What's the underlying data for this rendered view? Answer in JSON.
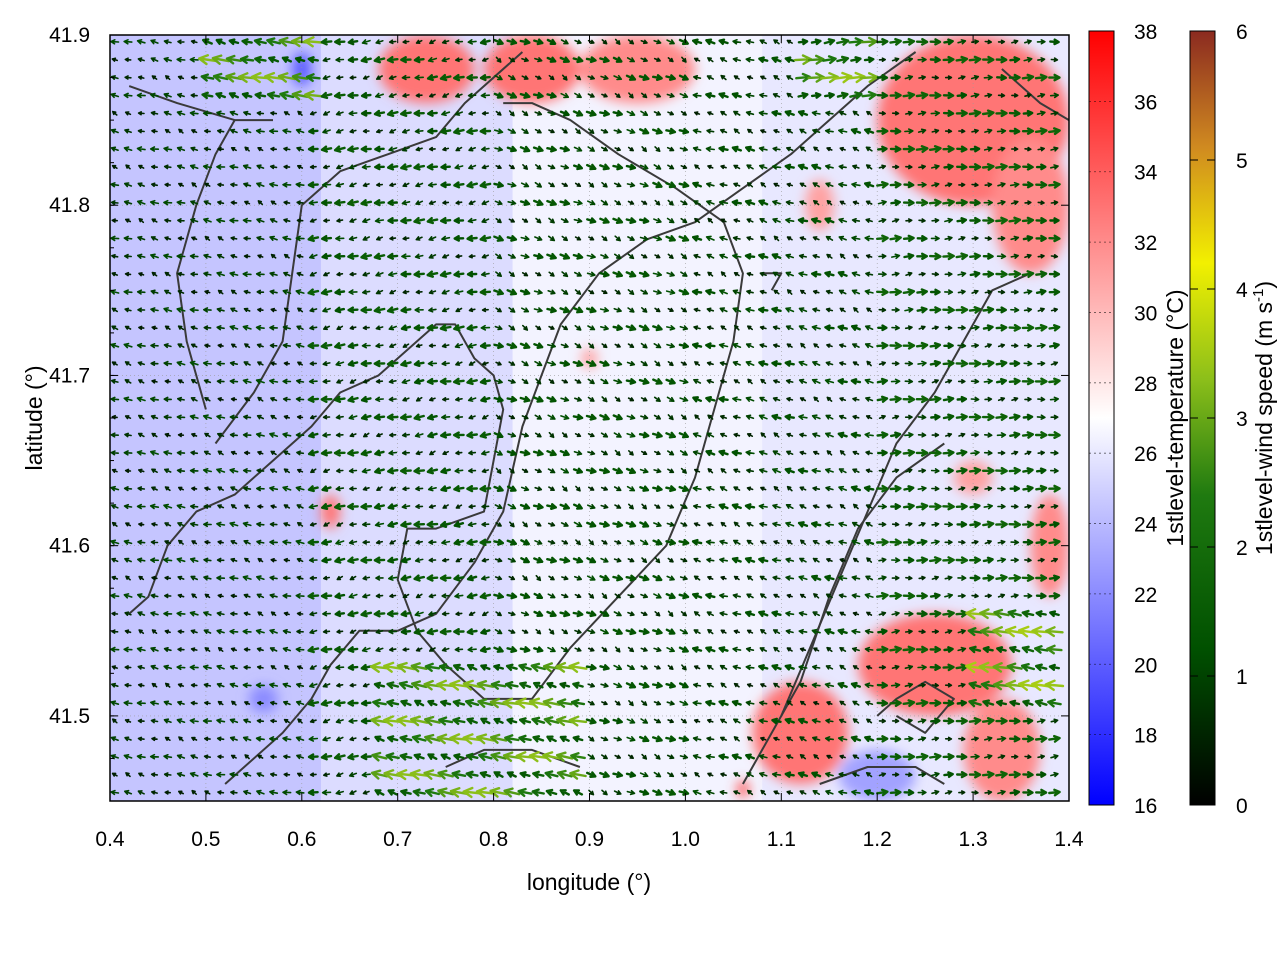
{
  "chart_data": {
    "type": "heatmap",
    "title": "",
    "xlabel": "longitude (°)",
    "ylabel": "latitude (°)",
    "xlim": [
      0.4,
      1.4
    ],
    "ylim": [
      41.45,
      41.9
    ],
    "x_ticks": [
      "0.4",
      "0.5",
      "0.6",
      "0.7",
      "0.8",
      "0.9",
      "1.0",
      "1.1",
      "1.2",
      "1.3",
      "1.4"
    ],
    "y_ticks": [
      "41.5",
      "41.6",
      "41.7",
      "41.8",
      "41.9"
    ],
    "y_tick_values": [
      41.5,
      41.6,
      41.7,
      41.8,
      41.9
    ],
    "x_tick_values": [
      0.4,
      0.5,
      0.6,
      0.7,
      0.8,
      0.9,
      1.0,
      1.1,
      1.2,
      1.3,
      1.4
    ],
    "grid": true,
    "temperature_colorbar": {
      "label": "1stlevel-temperature (°C)",
      "range": [
        16,
        38
      ],
      "ticks": [
        "16",
        "18",
        "20",
        "22",
        "24",
        "26",
        "28",
        "30",
        "32",
        "34",
        "36",
        "38"
      ],
      "colors": [
        "#0000ff",
        "#ffffff",
        "#ff0000"
      ]
    },
    "wind_colorbar": {
      "label_main": "1stlevel-wind speed (m s",
      "label_sup": "-1",
      "label_end": ")",
      "range": [
        0,
        6
      ],
      "ticks": [
        "0",
        "1",
        "2",
        "3",
        "4",
        "5",
        "6"
      ],
      "colors": [
        "#000000",
        "#006400",
        "#228b22",
        "#9acd32",
        "#ffff00",
        "#cd853f",
        "#8b2500"
      ]
    },
    "temperature_regions": [
      {
        "lon": [
          0.4,
          0.62
        ],
        "lat": [
          41.45,
          41.9
        ],
        "temp": 24.5
      },
      {
        "lon": [
          0.62,
          0.82
        ],
        "lat": [
          41.45,
          41.9
        ],
        "temp": 25.5
      },
      {
        "lon": [
          0.82,
          1.08
        ],
        "lat": [
          41.45,
          41.9
        ],
        "temp": 26.5
      },
      {
        "lon": [
          1.08,
          1.4
        ],
        "lat": [
          41.45,
          41.9
        ],
        "temp": 26.0
      }
    ],
    "hot_spots": [
      {
        "lon": 0.73,
        "lat": 41.88,
        "rx": 0.05,
        "ry": 0.02,
        "temp": 33
      },
      {
        "lon": 0.84,
        "lat": 41.88,
        "rx": 0.05,
        "ry": 0.02,
        "temp": 33
      },
      {
        "lon": 0.95,
        "lat": 41.88,
        "rx": 0.06,
        "ry": 0.02,
        "temp": 32
      },
      {
        "lon": 1.3,
        "lat": 41.85,
        "rx": 0.1,
        "ry": 0.05,
        "temp": 33
      },
      {
        "lon": 1.36,
        "lat": 41.8,
        "rx": 0.04,
        "ry": 0.04,
        "temp": 32
      },
      {
        "lon": 1.14,
        "lat": 41.8,
        "rx": 0.015,
        "ry": 0.015,
        "temp": 31
      },
      {
        "lon": 0.63,
        "lat": 41.62,
        "rx": 0.01,
        "ry": 0.01,
        "temp": 33
      },
      {
        "lon": 0.9,
        "lat": 41.71,
        "rx": 0.008,
        "ry": 0.006,
        "temp": 31
      },
      {
        "lon": 1.12,
        "lat": 41.49,
        "rx": 0.05,
        "ry": 0.03,
        "temp": 33
      },
      {
        "lon": 1.26,
        "lat": 41.53,
        "rx": 0.08,
        "ry": 0.03,
        "temp": 33
      },
      {
        "lon": 1.33,
        "lat": 41.48,
        "rx": 0.04,
        "ry": 0.03,
        "temp": 32
      },
      {
        "lon": 1.38,
        "lat": 41.6,
        "rx": 0.02,
        "ry": 0.03,
        "temp": 32
      },
      {
        "lon": 1.3,
        "lat": 41.64,
        "rx": 0.02,
        "ry": 0.01,
        "temp": 31
      },
      {
        "lon": 1.06,
        "lat": 41.457,
        "rx": 0.006,
        "ry": 0.005,
        "temp": 35
      }
    ],
    "cold_spots": [
      {
        "lon": 0.6,
        "lat": 41.88,
        "rx": 0.01,
        "ry": 0.01,
        "temp": 20
      },
      {
        "lon": 0.56,
        "lat": 41.51,
        "rx": 0.015,
        "ry": 0.008,
        "temp": 22
      },
      {
        "lon": 1.2,
        "lat": 41.465,
        "rx": 0.04,
        "ry": 0.015,
        "temp": 23
      }
    ],
    "wind_regions": [
      {
        "lon": [
          0.4,
          0.6
        ],
        "lat": [
          41.45,
          41.9
        ],
        "u": -1.0,
        "v": 0.2
      },
      {
        "lon": [
          0.6,
          0.8
        ],
        "lat": [
          41.45,
          41.9
        ],
        "u": -1.4,
        "v": -0.2
      },
      {
        "lon": [
          0.8,
          1.0
        ],
        "lat": [
          41.45,
          41.9
        ],
        "u": 1.2,
        "v": -0.4
      },
      {
        "lon": [
          1.0,
          1.2
        ],
        "lat": [
          41.45,
          41.9
        ],
        "u": -1.1,
        "v": 0.3
      },
      {
        "lon": [
          1.2,
          1.4
        ],
        "lat": [
          41.45,
          41.9
        ],
        "u": 1.6,
        "v": 0.1
      },
      {
        "lon": [
          0.68,
          0.9
        ],
        "lat": [
          41.45,
          41.53
        ],
        "u": -3.0,
        "v": 0.5
      },
      {
        "lon": [
          1.3,
          1.4
        ],
        "lat": [
          41.5,
          41.57
        ],
        "u": -3.2,
        "v": 0.4
      },
      {
        "lon": [
          0.5,
          0.62
        ],
        "lat": [
          41.86,
          41.9
        ],
        "u": -3.0,
        "v": 0.4
      },
      {
        "lon": [
          1.12,
          1.2
        ],
        "lat": [
          41.86,
          41.9
        ],
        "u": 3.1,
        "v": 0.3
      }
    ],
    "contours": [
      [
        [
          0.42,
          41.56
        ],
        [
          0.44,
          41.57
        ],
        [
          0.46,
          41.6
        ],
        [
          0.49,
          41.62
        ],
        [
          0.53,
          41.63
        ],
        [
          0.57,
          41.65
        ],
        [
          0.61,
          41.67
        ],
        [
          0.64,
          41.69
        ],
        [
          0.68,
          41.7
        ],
        [
          0.72,
          41.72
        ],
        [
          0.74,
          41.73
        ],
        [
          0.76,
          41.73
        ],
        [
          0.78,
          41.71
        ],
        [
          0.8,
          41.7
        ],
        [
          0.81,
          41.68
        ],
        [
          0.8,
          41.65
        ],
        [
          0.79,
          41.62
        ],
        [
          0.74,
          41.61
        ],
        [
          0.71,
          41.61
        ],
        [
          0.7,
          41.58
        ],
        [
          0.72,
          41.55
        ],
        [
          0.75,
          41.53
        ],
        [
          0.79,
          41.51
        ],
        [
          0.84,
          41.51
        ],
        [
          0.88,
          41.54
        ],
        [
          0.93,
          41.57
        ],
        [
          0.98,
          41.6
        ],
        [
          1.01,
          41.64
        ],
        [
          1.03,
          41.68
        ],
        [
          1.05,
          41.72
        ],
        [
          1.06,
          41.76
        ],
        [
          1.04,
          41.79
        ],
        [
          0.99,
          41.81
        ],
        [
          0.93,
          41.83
        ],
        [
          0.88,
          41.85
        ],
        [
          0.84,
          41.86
        ],
        [
          0.81,
          41.86
        ]
      ],
      [
        [
          0.52,
          41.46
        ],
        [
          0.58,
          41.49
        ],
        [
          0.61,
          41.51
        ],
        [
          0.63,
          41.53
        ],
        [
          0.66,
          41.55
        ],
        [
          0.7,
          41.55
        ],
        [
          0.74,
          41.56
        ],
        [
          0.78,
          41.59
        ],
        [
          0.81,
          41.62
        ],
        [
          0.83,
          41.67
        ],
        [
          0.85,
          41.7
        ],
        [
          0.87,
          41.73
        ],
        [
          0.91,
          41.76
        ],
        [
          0.96,
          41.78
        ],
        [
          1.01,
          41.79
        ],
        [
          1.06,
          41.81
        ],
        [
          1.11,
          41.83
        ],
        [
          1.15,
          41.85
        ],
        [
          1.19,
          41.87
        ],
        [
          1.24,
          41.89
        ]
      ],
      [
        [
          0.51,
          41.66
        ],
        [
          0.55,
          41.69
        ],
        [
          0.58,
          41.72
        ],
        [
          0.59,
          41.76
        ],
        [
          0.6,
          41.8
        ],
        [
          0.64,
          41.82
        ],
        [
          0.69,
          41.83
        ],
        [
          0.74,
          41.84
        ],
        [
          0.77,
          41.86
        ],
        [
          0.83,
          41.89
        ]
      ],
      [
        [
          0.5,
          41.68
        ],
        [
          0.48,
          41.72
        ],
        [
          0.47,
          41.76
        ],
        [
          0.49,
          41.8
        ],
        [
          0.51,
          41.83
        ],
        [
          0.53,
          41.85
        ]
      ],
      [
        [
          1.1,
          41.5
        ],
        [
          1.13,
          41.54
        ],
        [
          1.16,
          41.58
        ],
        [
          1.19,
          41.62
        ],
        [
          1.22,
          41.66
        ],
        [
          1.26,
          41.69
        ],
        [
          1.29,
          41.72
        ],
        [
          1.32,
          41.75
        ],
        [
          1.36,
          41.76
        ]
      ],
      [
        [
          1.06,
          41.46
        ],
        [
          1.09,
          41.49
        ],
        [
          1.12,
          41.52
        ],
        [
          1.15,
          41.57
        ],
        [
          1.18,
          41.61
        ],
        [
          1.22,
          41.64
        ],
        [
          1.27,
          41.66
        ]
      ],
      [
        [
          1.2,
          41.5
        ],
        [
          1.22,
          41.51
        ],
        [
          1.25,
          41.52
        ],
        [
          1.28,
          41.51
        ],
        [
          1.25,
          41.49
        ],
        [
          1.22,
          41.5
        ]
      ],
      [
        [
          0.75,
          41.47
        ],
        [
          0.79,
          41.48
        ],
        [
          0.84,
          41.48
        ],
        [
          0.89,
          41.47
        ]
      ],
      [
        [
          1.14,
          41.46
        ],
        [
          1.19,
          41.47
        ],
        [
          1.24,
          41.47
        ],
        [
          1.27,
          41.46
        ]
      ],
      [
        [
          0.42,
          41.87
        ],
        [
          0.47,
          41.86
        ],
        [
          0.53,
          41.85
        ],
        [
          0.57,
          41.85
        ]
      ],
      [
        [
          1.33,
          41.88
        ],
        [
          1.37,
          41.86
        ],
        [
          1.4,
          41.85
        ]
      ],
      [
        [
          1.08,
          41.76
        ],
        [
          1.1,
          41.76
        ],
        [
          1.09,
          41.75
        ]
      ]
    ]
  }
}
